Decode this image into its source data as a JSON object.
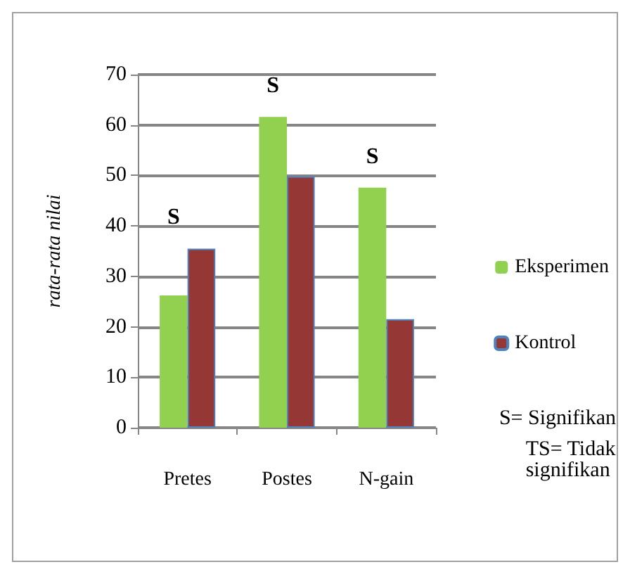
{
  "chart_data": {
    "type": "bar",
    "ylabel": "rata-rata nilai",
    "categories": [
      "Pretes",
      "Postes",
      "N-gain"
    ],
    "series": [
      {
        "name": "Eksperimen",
        "color": "#92d050",
        "values": [
          26.2,
          61.6,
          47.6
        ]
      },
      {
        "name": "Kontrol",
        "color": "#953735",
        "values": [
          35.5,
          49.8,
          21.5
        ]
      }
    ],
    "ylim": [
      0,
      70
    ],
    "yticks": [
      0,
      10,
      20,
      30,
      40,
      50,
      60,
      70
    ],
    "grid": "y",
    "legend": "right",
    "annotations": [
      {
        "text": "S",
        "x": "Pretes",
        "y": 35.5
      },
      {
        "text": "S",
        "x": "Postes",
        "y": 61.6
      },
      {
        "text": "S",
        "x": "N-gain",
        "y": 47.6
      },
      "S= Signifikan",
      "TS= Tidak\nsignifikan"
    ]
  }
}
